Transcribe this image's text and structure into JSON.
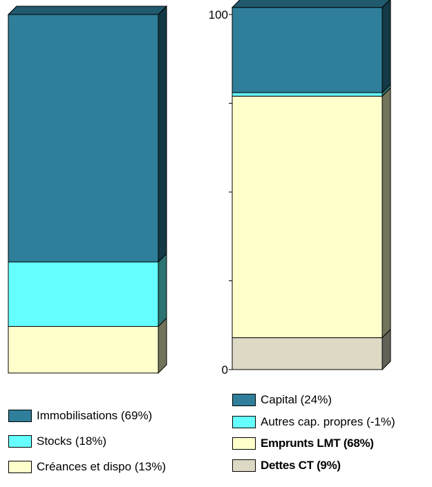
{
  "chart_data": [
    {
      "type": "bar",
      "stacked": true,
      "ylim": [
        0,
        100
      ],
      "series": [
        {
          "name": "Immobilisations (69%)",
          "values": [
            69
          ],
          "color": "#2f7f9b"
        },
        {
          "name": "Stocks (18%)",
          "values": [
            18
          ],
          "color": "#66ffff"
        },
        {
          "name": "Créances et dispo (13%)",
          "values": [
            13
          ],
          "color": "#ffffcc"
        }
      ]
    },
    {
      "type": "bar",
      "stacked": true,
      "ylim": [
        0,
        100
      ],
      "yticks": [
        "0",
        "100"
      ],
      "series": [
        {
          "name": "Capital (24%)",
          "values": [
            24
          ],
          "color": "#2f7f9b"
        },
        {
          "name": "Autres cap. propres (-1%)",
          "values": [
            -1
          ],
          "color": "#66ffff"
        },
        {
          "name": "Emprunts LMT (68%)",
          "values": [
            68
          ],
          "color": "#ffffcc"
        },
        {
          "name": "Dettes CT (9%)",
          "values": [
            9
          ],
          "color": "#ddd9c4"
        }
      ]
    }
  ],
  "legend_left": [
    {
      "label": "Immobilisations (69%)",
      "color": "#2f7f9b"
    },
    {
      "label": "Stocks (18%)",
      "color": "#66ffff"
    },
    {
      "label": "Créances et dispo (13%)",
      "color": "#ffffcc"
    }
  ],
  "legend_right": [
    {
      "label": "Capital (24%)",
      "color": "#2f7f9b"
    },
    {
      "label": "Autres cap. propres (-1%)",
      "color": "#66ffff"
    },
    {
      "label": "Emprunts LMT (68%)",
      "color": "#ffffcc"
    },
    {
      "label": "Dettes CT (9%)",
      "color": "#ddd9c4"
    }
  ]
}
